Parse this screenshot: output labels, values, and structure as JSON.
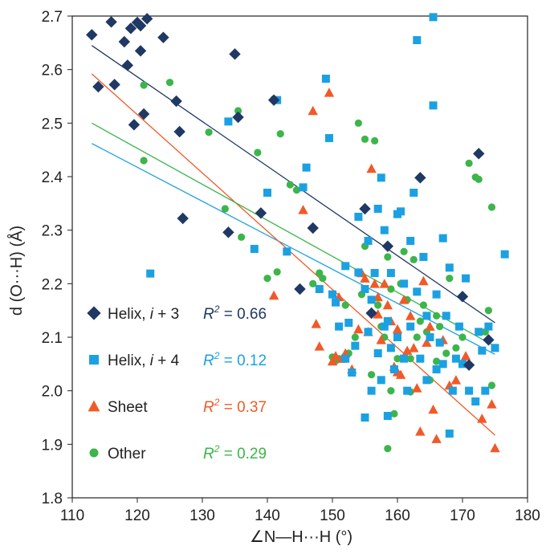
{
  "chart_data": {
    "type": "scatter",
    "xlabel": "∠N—H···H (°)",
    "ylabel": "d (O···H) (Å)",
    "xlim": [
      110,
      180
    ],
    "ylim": [
      1.8,
      2.7
    ],
    "xticks": [
      110,
      120,
      130,
      140,
      150,
      160,
      170,
      180
    ],
    "yticks": [
      1.8,
      1.9,
      2.0,
      2.1,
      2.2,
      2.3,
      2.4,
      2.5,
      2.6,
      2.7
    ],
    "xtick_labels": [
      "110",
      "120",
      "130",
      "140",
      "150",
      "160",
      "170",
      "180"
    ],
    "ytick_labels": [
      "1.8",
      "1.9",
      "2.0",
      "2.1",
      "2.2",
      "2.3",
      "2.4",
      "2.5",
      "2.6",
      "2.7"
    ],
    "grid": false,
    "legend_position": "bottom-left",
    "series": [
      {
        "name": "Helix, i + 3",
        "label_main": "Helix, ",
        "label_var": "i",
        "label_tail": " + 3",
        "r2_label": "R",
        "r2_sup": "2",
        "r2_value": " = 0.66",
        "marker": "diamond",
        "color": "#1f3864",
        "trend": {
          "x": [
            113,
            175
          ],
          "y": [
            2.645,
            2.127
          ]
        },
        "points": [
          [
            113,
            2.665
          ],
          [
            114,
            2.568
          ],
          [
            116,
            2.689
          ],
          [
            116.5,
            2.572
          ],
          [
            118,
            2.652
          ],
          [
            118.5,
            2.608
          ],
          [
            119,
            2.677
          ],
          [
            120,
            2.688
          ],
          [
            120.5,
            2.682
          ],
          [
            120.5,
            2.635
          ],
          [
            121.5,
            2.695
          ],
          [
            124,
            2.66
          ],
          [
            119.5,
            2.497
          ],
          [
            121,
            2.517
          ],
          [
            126,
            2.541
          ],
          [
            126.5,
            2.484
          ],
          [
            127,
            2.322
          ],
          [
            134,
            2.296
          ],
          [
            135,
            2.629
          ],
          [
            135.5,
            2.511
          ],
          [
            139,
            2.332
          ],
          [
            141,
            2.543
          ],
          [
            145,
            2.19
          ],
          [
            147,
            2.304
          ],
          [
            155,
            2.34
          ],
          [
            156,
            2.145
          ],
          [
            158.5,
            2.27
          ],
          [
            163.5,
            2.398
          ],
          [
            170,
            2.176
          ],
          [
            171,
            2.048
          ],
          [
            172.5,
            2.443
          ],
          [
            174,
            2.095
          ]
        ]
      },
      {
        "name": "Helix, i + 4",
        "label_main": "Helix, ",
        "label_var": "i",
        "label_tail": " + 4",
        "r2_label": "R",
        "r2_sup": "2",
        "r2_value": " = 0.12",
        "marker": "square",
        "color": "#1ba1e2",
        "trend": {
          "x": [
            113,
            175
          ],
          "y": [
            2.462,
            2.068
          ]
        },
        "points": [
          [
            122,
            2.219
          ],
          [
            134,
            2.503
          ],
          [
            138,
            2.265
          ],
          [
            140,
            2.37
          ],
          [
            141.5,
            2.543
          ],
          [
            143,
            2.26
          ],
          [
            145.5,
            2.38
          ],
          [
            146,
            2.417
          ],
          [
            148,
            2.19
          ],
          [
            149,
            2.583
          ],
          [
            149.5,
            2.472
          ],
          [
            150,
            2.18
          ],
          [
            150.5,
            2.165
          ],
          [
            151,
            2.12
          ],
          [
            152,
            2.06
          ],
          [
            152,
            2.233
          ],
          [
            152.5,
            2.127
          ],
          [
            153,
            2.034
          ],
          [
            153.5,
            2.084
          ],
          [
            154,
            2.221
          ],
          [
            154,
            2.325
          ],
          [
            155,
            2.19
          ],
          [
            155,
            1.95
          ],
          [
            155.5,
            2.28
          ],
          [
            155.5,
            2.11
          ],
          [
            156,
            2.17
          ],
          [
            156.5,
            2.22
          ],
          [
            157,
            2.07
          ],
          [
            157,
            2.34
          ],
          [
            157.5,
            2.398
          ],
          [
            157.5,
            2.02
          ],
          [
            158,
            2.12
          ],
          [
            158,
            2.3
          ],
          [
            158.5,
            2.13
          ],
          [
            159,
            2.08
          ],
          [
            159,
            2.22
          ],
          [
            159.5,
            2.04
          ],
          [
            160,
            2.33
          ],
          [
            160,
            2.1
          ],
          [
            160.5,
            2.335
          ],
          [
            161,
            2.2
          ],
          [
            161.5,
            2.0
          ],
          [
            162,
            2.28
          ],
          [
            162,
            2.12
          ],
          [
            162.5,
            2.37
          ],
          [
            163,
            2.655
          ],
          [
            163.5,
            2.06
          ],
          [
            164,
            2.25
          ],
          [
            164.5,
            2.02
          ],
          [
            165,
            2.1
          ],
          [
            165.5,
            2.533
          ],
          [
            165.5,
            2.698
          ],
          [
            166,
            2.18
          ],
          [
            166,
            2.04
          ],
          [
            166.5,
            2.09
          ],
          [
            167,
            2.285
          ],
          [
            167.5,
            2.14
          ],
          [
            168,
            2.23
          ],
          [
            168,
            1.92
          ],
          [
            168.5,
            2.0
          ],
          [
            169,
            2.06
          ],
          [
            169.5,
            2.12
          ],
          [
            170,
            2.05
          ],
          [
            170.5,
            2.21
          ],
          [
            171,
            2.0
          ],
          [
            172,
            1.98
          ],
          [
            172.5,
            2.11
          ],
          [
            173,
            2.075
          ],
          [
            173.5,
            2.0
          ],
          [
            174,
            2.12
          ],
          [
            175,
            2.08
          ],
          [
            176.5,
            2.255
          ],
          [
            156,
            2.0
          ],
          [
            158.5,
            1.953
          ],
          [
            161,
            2.06
          ],
          [
            164.5,
            2.14
          ],
          [
            163,
            2.185
          ],
          [
            167,
            2.05
          ]
        ]
      },
      {
        "name": "Sheet",
        "label_main": "Sheet",
        "label_var": "",
        "label_tail": "",
        "r2_label": "R",
        "r2_sup": "2",
        "r2_value": " = 0.37",
        "marker": "triangle",
        "color": "#f05a28",
        "trend": {
          "x": [
            113,
            175
          ],
          "y": [
            2.592,
            1.917
          ]
        },
        "points": [
          [
            141,
            2.178
          ],
          [
            145.5,
            2.338
          ],
          [
            147,
            2.523
          ],
          [
            147.5,
            2.125
          ],
          [
            148,
            2.083
          ],
          [
            149.5,
            2.557
          ],
          [
            150,
            2.055
          ],
          [
            150.5,
            2.065
          ],
          [
            151,
            2.175
          ],
          [
            151.5,
            2.06
          ],
          [
            152,
            2.07
          ],
          [
            153,
            2.04
          ],
          [
            154,
            2.115
          ],
          [
            154.5,
            2.22
          ],
          [
            155,
            2.21
          ],
          [
            155.5,
            2.11
          ],
          [
            156,
            2.415
          ],
          [
            156.5,
            2.2
          ],
          [
            157,
            2.175
          ],
          [
            157.5,
            2.095
          ],
          [
            158,
            2.2
          ],
          [
            158.5,
            2.16
          ],
          [
            159,
            2.13
          ],
          [
            159.5,
            2.045
          ],
          [
            160,
            2.115
          ],
          [
            160,
            2.035
          ],
          [
            160.5,
            2.03
          ],
          [
            161,
            2.17
          ],
          [
            161.5,
            2.075
          ],
          [
            162,
            2.14
          ],
          [
            162.5,
            2.08
          ],
          [
            163,
            2.005
          ],
          [
            163.5,
            1.924
          ],
          [
            164,
            2.205
          ],
          [
            164.5,
            2.09
          ],
          [
            165,
            2.12
          ],
          [
            165.5,
            1.965
          ],
          [
            166,
            1.91
          ],
          [
            167,
            2.095
          ],
          [
            168,
            2.01
          ],
          [
            169,
            2.02
          ],
          [
            170.5,
            2.065
          ],
          [
            173,
            1.948
          ],
          [
            174.5,
            1.975
          ],
          [
            175,
            1.893
          ],
          [
            157,
            2.143
          ]
        ]
      },
      {
        "name": "Other",
        "label_main": "Other",
        "label_var": "",
        "label_tail": "",
        "r2_label": "R",
        "r2_sup": "2",
        "r2_value": " = 0.29",
        "marker": "circle",
        "color": "#3cb54a",
        "trend": {
          "x": [
            113,
            175
          ],
          "y": [
            2.5,
            2.083
          ]
        },
        "points": [
          [
            121,
            2.571
          ],
          [
            121,
            2.43
          ],
          [
            125,
            2.576
          ],
          [
            131,
            2.483
          ],
          [
            133.5,
            2.34
          ],
          [
            135.5,
            2.523
          ],
          [
            136,
            2.287
          ],
          [
            138.5,
            2.445
          ],
          [
            140,
            2.21
          ],
          [
            141,
            2.545
          ],
          [
            141.5,
            2.222
          ],
          [
            142,
            2.48
          ],
          [
            143.5,
            2.385
          ],
          [
            144.5,
            2.375
          ],
          [
            147,
            2.2
          ],
          [
            148,
            2.22
          ],
          [
            148.5,
            2.21
          ],
          [
            150,
            2.063
          ],
          [
            150.5,
            2.056
          ],
          [
            151,
            2.06
          ],
          [
            152,
            2.16
          ],
          [
            152.5,
            2.07
          ],
          [
            153.5,
            2.1
          ],
          [
            154,
            2.5
          ],
          [
            154.5,
            2.18
          ],
          [
            155,
            2.27
          ],
          [
            155,
            2.47
          ],
          [
            156,
            2.03
          ],
          [
            156.5,
            2.467
          ],
          [
            157,
            2.16
          ],
          [
            157.5,
            2.12
          ],
          [
            158,
            2.1
          ],
          [
            158.5,
            2.25
          ],
          [
            158.5,
            1.892
          ],
          [
            159,
            2.0
          ],
          [
            159.5,
            1.957
          ],
          [
            160,
            2.06
          ],
          [
            160.5,
            2.2
          ],
          [
            161,
            2.26
          ],
          [
            161.5,
            2.17
          ],
          [
            162,
            2.06
          ],
          [
            162.5,
            2.245
          ],
          [
            163,
            2.1
          ],
          [
            163.5,
            2.13
          ],
          [
            164,
            2.16
          ],
          [
            164.5,
            2.11
          ],
          [
            165,
            2.02
          ],
          [
            166,
            2.14
          ],
          [
            166.5,
            2.12
          ],
          [
            167.5,
            2.07
          ],
          [
            168,
            2.21
          ],
          [
            169,
            2.08
          ],
          [
            170,
            2.1
          ],
          [
            171,
            2.425
          ],
          [
            172,
            2.399
          ],
          [
            172.5,
            2.395
          ],
          [
            173.5,
            2.11
          ],
          [
            174,
            2.15
          ],
          [
            174.5,
            2.343
          ],
          [
            174.5,
            2.01
          ],
          [
            166,
            2.055
          ],
          [
            162,
            1.998
          ],
          [
            159,
            2.19
          ]
        ]
      }
    ]
  }
}
